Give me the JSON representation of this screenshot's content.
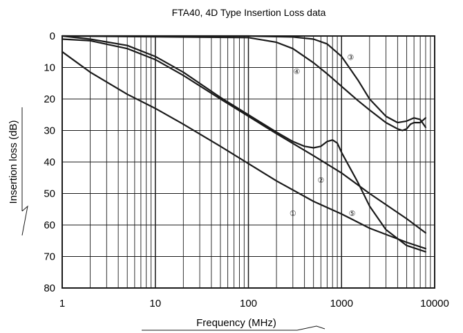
{
  "chart_data": {
    "type": "line",
    "title": "FTA40, 4D Type Insertion Loss data",
    "xlabel": "Frequency (MHz)",
    "ylabel": "Insertion loss (dB)",
    "x_scale": "log",
    "xlim": [
      1,
      10000
    ],
    "ylim": [
      0,
      80
    ],
    "y_inverted": true,
    "grid": true,
    "x_ticks": [
      "1",
      "10",
      "100",
      "1000",
      "10000"
    ],
    "y_ticks": [
      "0",
      "10",
      "20",
      "30",
      "40",
      "50",
      "60",
      "70",
      "80"
    ],
    "series": [
      {
        "name": "①",
        "x": [
          1,
          2,
          5,
          10,
          20,
          50,
          100,
          200,
          500,
          1000,
          2000,
          5000,
          8000
        ],
        "y": [
          5,
          11.5,
          18.5,
          23,
          28,
          35,
          40.5,
          46,
          52.5,
          56.5,
          61,
          65.5,
          67.5
        ]
      },
      {
        "name": "②",
        "x": [
          1,
          2,
          5,
          10,
          20,
          50,
          100,
          200,
          500,
          1000,
          2000,
          5000,
          8000
        ],
        "y": [
          1,
          1.5,
          4,
          7.5,
          12.5,
          20,
          25.5,
          31,
          38,
          43.5,
          50,
          58,
          62.5
        ]
      },
      {
        "name": "③",
        "x": [
          1,
          100,
          300,
          500,
          700,
          1000,
          1500,
          2000,
          3000,
          4000,
          5000,
          6000,
          7000,
          8000
        ],
        "y": [
          0,
          0,
          0.3,
          1,
          2.5,
          6.5,
          14,
          20,
          25.5,
          27.5,
          27,
          26,
          26.5,
          29
        ]
      },
      {
        "name": "④",
        "x": [
          1,
          100,
          200,
          300,
          500,
          700,
          1000,
          1500,
          2000,
          3000,
          4000,
          4500,
          5000,
          5500,
          6000,
          7000,
          8000
        ],
        "y": [
          0,
          0.5,
          2,
          4,
          8.5,
          12,
          16,
          20.5,
          23.5,
          27.5,
          29.5,
          30,
          29.5,
          28,
          27.5,
          27.5,
          26
        ]
      },
      {
        "name": "⑤",
        "x": [
          1,
          2,
          5,
          10,
          20,
          50,
          100,
          200,
          300,
          400,
          500,
          600,
          700,
          800,
          900,
          1000,
          1500,
          2000,
          3000,
          5000,
          8000
        ],
        "y": [
          0,
          1,
          3,
          6.5,
          11.5,
          19.5,
          25,
          30.5,
          33.5,
          35,
          35.5,
          35,
          33.5,
          33,
          34,
          37,
          46.5,
          54,
          61.5,
          66.5,
          68.5
        ]
      }
    ],
    "markers": [
      {
        "label": "①",
        "x": 300,
        "y": 56
      },
      {
        "label": "②",
        "x": 600,
        "y": 45.5
      },
      {
        "label": "③",
        "x": 1250,
        "y": 6.5
      },
      {
        "label": "④",
        "x": 330,
        "y": 11
      },
      {
        "label": "⑤",
        "x": 1300,
        "y": 56
      }
    ]
  }
}
